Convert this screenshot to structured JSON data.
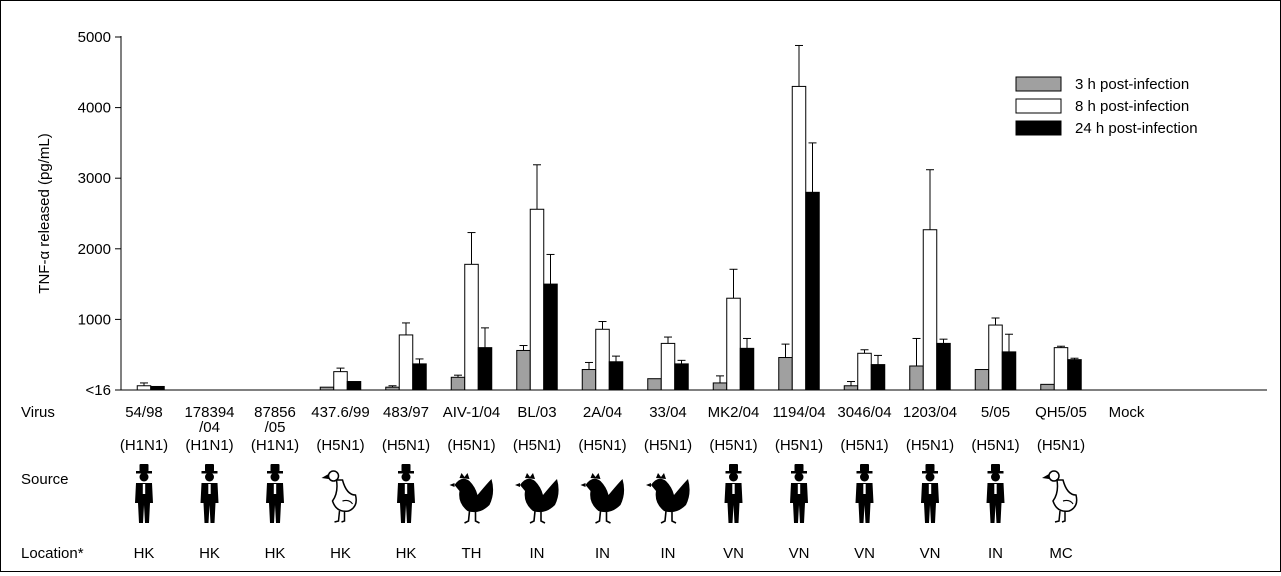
{
  "chart_data": {
    "type": "bar",
    "ylabel": "TNF-α released (pg/mL)",
    "yticks": [
      {
        "value": 16,
        "label": "<16"
      },
      {
        "value": 1000,
        "label": "1000"
      },
      {
        "value": 2000,
        "label": "2000"
      },
      {
        "value": 3000,
        "label": "3000"
      },
      {
        "value": 4000,
        "label": "4000"
      },
      {
        "value": 5000,
        "label": "5000"
      }
    ],
    "ylim": [
      0,
      5000
    ],
    "grid": false,
    "legend_position": "top-right",
    "categories": [
      "54/98",
      "178394/04",
      "87856/05",
      "437.6/99",
      "483/97",
      "AIV-1/04",
      "BL/03",
      "2A/04",
      "33/04",
      "MK2/04",
      "1194/04",
      "3046/04",
      "1203/04",
      "5/05",
      "QH5/05",
      "Mock"
    ],
    "subtypes": [
      "(H1N1)",
      "(H1N1)",
      "(H1N1)",
      "(H5N1)",
      "(H5N1)",
      "(H5N1)",
      "(H5N1)",
      "(H5N1)",
      "(H5N1)",
      "(H5N1)",
      "(H5N1)",
      "(H5N1)",
      "(H5N1)",
      "(H5N1)",
      "(H5N1)",
      ""
    ],
    "sources": [
      "human",
      "human",
      "human",
      "duck",
      "human",
      "chicken",
      "chicken",
      "chicken",
      "chicken",
      "human",
      "human",
      "human",
      "human",
      "human",
      "duck",
      ""
    ],
    "locations": [
      "HK",
      "HK",
      "HK",
      "HK",
      "HK",
      "TH",
      "IN",
      "IN",
      "IN",
      "VN",
      "VN",
      "VN",
      "VN",
      "IN",
      "MC",
      ""
    ],
    "series": [
      {
        "name": "3 h post-infection",
        "color": "#a0a0a0",
        "values": [
          0,
          0,
          0,
          40,
          40,
          180,
          560,
          290,
          160,
          100,
          460,
          60,
          340,
          290,
          80,
          0
        ],
        "errors": [
          0,
          0,
          0,
          0,
          20,
          30,
          70,
          100,
          0,
          100,
          190,
          60,
          390,
          0,
          0,
          0
        ]
      },
      {
        "name": "8 h post-infection",
        "color": "#ffffff",
        "values": [
          60,
          0,
          0,
          260,
          780,
          1780,
          2560,
          860,
          660,
          1300,
          4300,
          520,
          2270,
          920,
          600,
          0
        ],
        "errors": [
          40,
          0,
          0,
          50,
          170,
          450,
          630,
          110,
          90,
          410,
          580,
          50,
          850,
          100,
          20,
          0
        ]
      },
      {
        "name": "24 h post-infection",
        "color": "#000000",
        "values": [
          50,
          0,
          0,
          120,
          370,
          600,
          1500,
          400,
          370,
          590,
          2800,
          360,
          660,
          540,
          430,
          0
        ],
        "errors": [
          0,
          0,
          0,
          0,
          70,
          280,
          420,
          80,
          50,
          140,
          700,
          130,
          60,
          250,
          20,
          0
        ]
      }
    ]
  },
  "labels": {
    "virus": "Virus",
    "source": "Source",
    "location": "Location*"
  }
}
